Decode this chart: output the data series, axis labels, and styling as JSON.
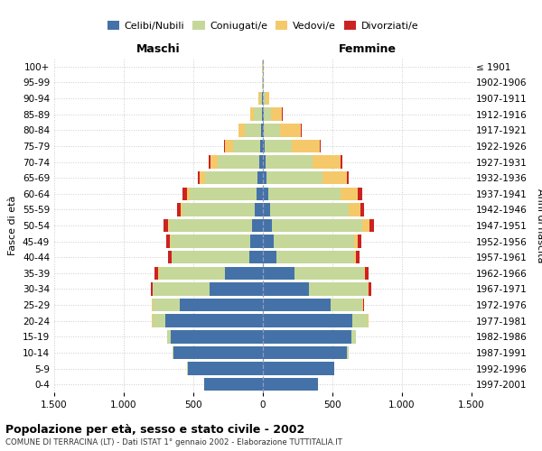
{
  "age_groups": [
    "0-4",
    "5-9",
    "10-14",
    "15-19",
    "20-24",
    "25-29",
    "30-34",
    "35-39",
    "40-44",
    "45-49",
    "50-54",
    "55-59",
    "60-64",
    "65-69",
    "70-74",
    "75-79",
    "80-84",
    "85-89",
    "90-94",
    "95-99",
    "100+"
  ],
  "birth_years": [
    "1997-2001",
    "1992-1996",
    "1987-1991",
    "1982-1986",
    "1977-1981",
    "1972-1976",
    "1967-1971",
    "1962-1966",
    "1957-1961",
    "1952-1956",
    "1947-1951",
    "1942-1946",
    "1937-1941",
    "1932-1936",
    "1927-1931",
    "1922-1926",
    "1917-1921",
    "1912-1916",
    "1907-1911",
    "1902-1906",
    "≤ 1901"
  ],
  "male": {
    "celibi": [
      420,
      540,
      640,
      660,
      700,
      600,
      380,
      270,
      100,
      88,
      75,
      58,
      48,
      38,
      28,
      18,
      12,
      8,
      4,
      2,
      2
    ],
    "coniugati": [
      2,
      4,
      8,
      28,
      95,
      195,
      410,
      480,
      555,
      575,
      600,
      520,
      475,
      378,
      295,
      195,
      115,
      55,
      18,
      4,
      2
    ],
    "vedovi": [
      0,
      0,
      0,
      0,
      1,
      1,
      2,
      2,
      3,
      5,
      10,
      15,
      25,
      40,
      55,
      60,
      48,
      28,
      8,
      2,
      1
    ],
    "divorziati": [
      0,
      0,
      0,
      1,
      3,
      5,
      15,
      25,
      25,
      25,
      28,
      25,
      28,
      12,
      10,
      8,
      3,
      2,
      0,
      0,
      0
    ]
  },
  "female": {
    "nubili": [
      395,
      510,
      605,
      635,
      640,
      490,
      330,
      225,
      95,
      78,
      68,
      52,
      38,
      28,
      22,
      12,
      8,
      6,
      3,
      1,
      1
    ],
    "coniugate": [
      2,
      4,
      10,
      32,
      115,
      225,
      425,
      500,
      560,
      580,
      645,
      568,
      518,
      398,
      338,
      198,
      118,
      55,
      18,
      4,
      2
    ],
    "vedove": [
      0,
      0,
      0,
      0,
      2,
      3,
      5,
      8,
      15,
      25,
      50,
      80,
      128,
      178,
      198,
      198,
      148,
      78,
      22,
      4,
      1
    ],
    "divorziate": [
      0,
      0,
      0,
      1,
      4,
      8,
      18,
      28,
      28,
      28,
      33,
      28,
      33,
      15,
      12,
      8,
      3,
      2,
      0,
      0,
      0
    ]
  },
  "colors": {
    "celibi": "#4472a8",
    "coniugati": "#c5d89a",
    "vedovi": "#f5c96a",
    "divorziati": "#cc2222"
  },
  "xlim": 1500,
  "title": "Popolazione per età, sesso e stato civile - 2002",
  "subtitle": "COMUNE DI TERRACINA (LT) - Dati ISTAT 1° gennaio 2002 - Elaborazione TUTTITALIA.IT",
  "ylabel": "Fasce di età",
  "ylabel_right": "Anni di nascita",
  "xlabel_maschi": "Maschi",
  "xlabel_femmine": "Femmine",
  "legend_labels": [
    "Celibi/Nubili",
    "Coniugati/e",
    "Vedovi/e",
    "Divorziati/e"
  ],
  "xtick_labels": [
    "1.500",
    "1.000",
    "500",
    "0",
    "500",
    "1.000",
    "1.500"
  ],
  "xtick_vals": [
    -1500,
    -1000,
    -500,
    0,
    500,
    1000,
    1500
  ]
}
